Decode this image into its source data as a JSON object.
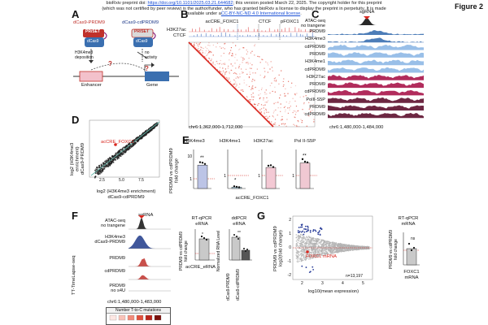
{
  "header": {
    "line1_pre": "bioRxiv preprint doi: ",
    "doi": "https://doi.org/10.1101/2025.03.21.644682",
    "line1_post": "; this version posted March 22, 2025. The copyright holder for this preprint",
    "line2": "(which was not certified by peer review) is the author/funder, who has granted bioRxiv a license to display the preprint in perpetuity. It is made",
    "line3_pre": "available under a",
    "license": "CC-BY-NC-ND 4.0 International license",
    "line3_post": ".",
    "figure": "Figure 2"
  },
  "panels": {
    "A": {
      "label": "A",
      "prdm9": "dCas9-PRDM9",
      "cdprdm9": "dCas9-cdPRDM9",
      "prset": "PR/SET",
      "dcas9": "dCas9",
      "deposition": "H3K4me3\ndeposition",
      "noactivity": "no\nactivity",
      "q1": "?",
      "q2": "?",
      "enhancer": "Enhancer",
      "gene": "Gene"
    },
    "B": {
      "label": "B",
      "h3k27ac": "H3K27ac",
      "ctcf": "CTCF",
      "acCRE": "acCRE_FOXC1",
      "ctcf2": "CTCF",
      "pfoxc1": "pFOXC1",
      "coords": "chr6:1,362,000-1,712,000"
    },
    "C": {
      "label": "C",
      "sgrna": "sgRNA",
      "tracks": [
        "ATAC-seq\nno trangene",
        "PRDM9",
        "H3K4me3",
        "cdPRDM9",
        "PRDM9",
        "H3K4me1",
        "cdPRDM9",
        "H3K27ac",
        "PRDM9",
        "cdPRDM9",
        "PolII-S5P",
        "PRDM9",
        "cdPRDM9"
      ],
      "coords": "chr6:1,480,000-1,484,000"
    },
    "D": {
      "label": "D",
      "ylabel": "log2 (H3K4me3 enrichment)\ndCas9-PRDM9",
      "xlabel": "log2 (H3K4me3 enrichment)\ndCas9-cdPRDM9",
      "highlight": "acCRE_FOXC1",
      "ticks": [
        "2.5",
        "5.0",
        "7.5"
      ]
    },
    "E": {
      "label": "E",
      "titles": [
        "H3K4me3",
        "H3K4me1",
        "H3K27ac",
        "Pol II-S5P"
      ],
      "ylabel": "PRDM9 vs cdPRDM9\nfold change",
      "xlabel": "acCRE_FOXC1",
      "stars": [
        "**",
        "*",
        "",
        "**"
      ],
      "means": [
        5.2,
        0.35,
        1.45,
        1.7
      ],
      "yticks": [
        [
          "10",
          "1"
        ],
        [
          "1"
        ],
        [
          "1"
        ],
        [
          "1"
        ]
      ],
      "colors": [
        "#bcc4e6",
        "#bfe0ee",
        "#f3c9d4",
        "#f0c8d2"
      ]
    },
    "F": {
      "label": "F",
      "sgrna": "sgRNA",
      "tracks": [
        "ATAC-seq\nno trangene",
        "H3K4me3\ndCas9-PRDM9",
        "PRDM9",
        "cdPRDM9",
        "PRDM9\nno s4U"
      ],
      "coords": "chr6:1,480,000-1,483,000",
      "sidelabel": "TT-TimeLapse-seq",
      "legend": "Number T-to-C mutations",
      "rtqpcr_title": "RT-qPCR\neRNA",
      "rtqpcr_ylabel": "PRDM9 vs cdPRDM9\nfold change",
      "rtqpcr_x": "acCRE_eRNA",
      "ddpcr_title": "ddPCR\neRNA",
      "ddpcr_ylabel": "Normalized RNA Level",
      "ddpcr_x": [
        "dCas9-PRDM9",
        "dCas9-cdPRDM9"
      ],
      "star": "*",
      "star2": "**"
    },
    "G": {
      "label": "G",
      "ylabel": "PRDM9 vs cdPRDM9\nlog2(fold change)",
      "xlabel": "log10(mean expression)",
      "n": "n=13,197",
      "highlight": "FOXC1 mRNA",
      "xticks": [
        "2",
        "3",
        "4",
        "5"
      ],
      "yticks": [
        "2",
        "1",
        "0",
        "-1",
        "-2"
      ],
      "rt_title": "RT-qPCR\nmRNA",
      "rt_ylabel": "PRDM9 vs cdPRDM9\nfold change",
      "rt_x": "FOXC1\nmRNA",
      "ns": "ns"
    }
  }
}
